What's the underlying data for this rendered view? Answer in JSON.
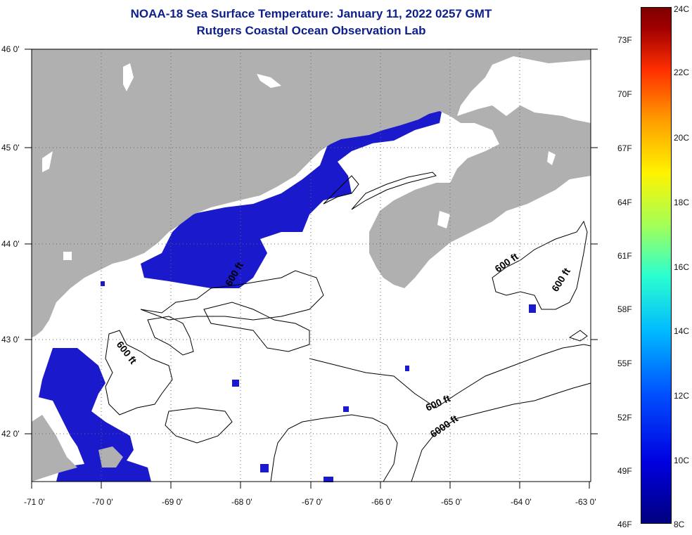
{
  "title": {
    "line1": "NOAA-18 Sea Surface Temperature:  January 11, 2022 0257 GMT",
    "line2": "Rutgers Coastal Ocean Observation Lab"
  },
  "map": {
    "lon_labels": [
      "-71 0'",
      "-70 0'",
      "-69 0'",
      "-68 0'",
      "-67 0'",
      "-66 0'",
      "-65 0'",
      "-64 0'",
      "-63 0'"
    ],
    "lat_labels": [
      "46 0'",
      "45 0'",
      "44 0'",
      "43 0'",
      "42 0'"
    ],
    "contour_labels": [
      "600 ft",
      "600 ft",
      "600 ft",
      "600 ft",
      "6000 ft",
      "600 ft"
    ],
    "colors": {
      "land": "#b0b0b0",
      "cold_water": "#1a1acc",
      "contour": "#000000"
    }
  },
  "colorbar": {
    "fahrenheit": [
      "73F",
      "70F",
      "67F",
      "64F",
      "61F",
      "58F",
      "55F",
      "52F",
      "49F",
      "46F"
    ],
    "celsius": [
      "24C",
      "22C",
      "20C",
      "18C",
      "16C",
      "14C",
      "12C",
      "10C",
      "8C"
    ]
  }
}
